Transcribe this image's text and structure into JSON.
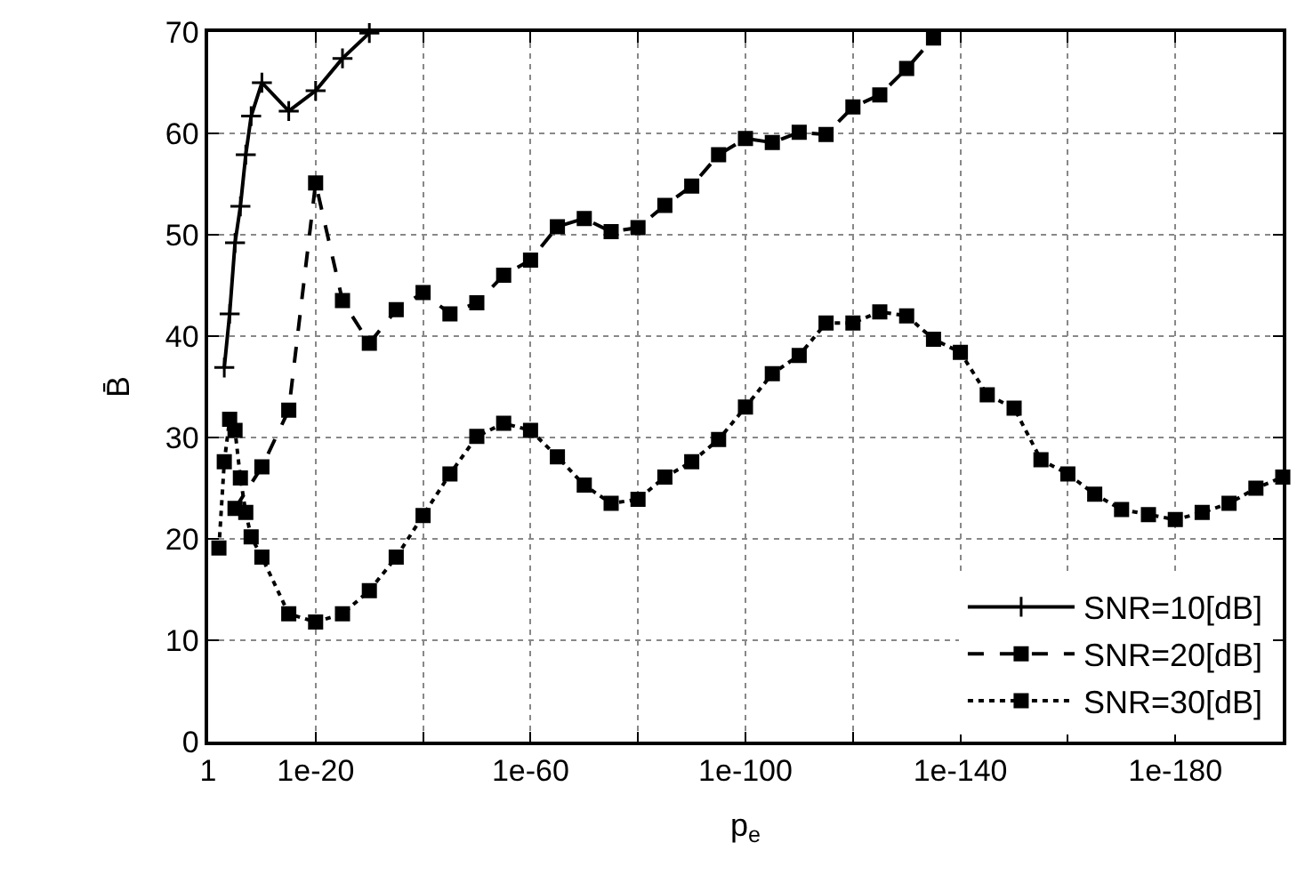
{
  "chart_data": {
    "type": "line",
    "xlabel": "p$_{e}$",
    "ylabel": "B̄",
    "log": "x",
    "grid": true,
    "legend": "bottom right",
    "xlim": [
      1,
      1e-200
    ],
    "xticks": [
      {
        "value": 1,
        "label": "1"
      },
      {
        "value": 1e-20,
        "label": "1e-20"
      },
      {
        "value": 1e-40,
        "label": null
      },
      {
        "value": 1e-60,
        "label": "1e-60"
      },
      {
        "value": 1e-80,
        "label": null
      },
      {
        "value": 1e-100,
        "label": "1e-100"
      },
      {
        "value": 1e-120,
        "label": null
      },
      {
        "value": 1e-140,
        "label": "1e-140"
      },
      {
        "value": 1e-160,
        "label": null
      },
      {
        "value": 1e-180,
        "label": "1e-180"
      },
      {
        "value": 1e-200,
        "label": null
      }
    ],
    "ylim": [
      0,
      70
    ],
    "yticks": [
      0,
      10,
      20,
      30,
      40,
      50,
      60,
      70
    ],
    "series": [
      {
        "name": "SNR=10[dB]",
        "color": "#000000",
        "line_style": "solid",
        "marker": "cross",
        "x": [
          0.001,
          0.0001,
          1e-05,
          1e-06,
          1e-07,
          1e-08,
          1e-10,
          1e-15,
          1e-20,
          1e-25,
          1e-30
        ],
        "values": [
          36.9,
          42.2,
          49.2,
          52.8,
          57.9,
          61.7,
          65.0,
          62.2,
          64.2,
          67.4,
          69.9
        ]
      },
      {
        "name": "SNR=20[dB]",
        "color": "#000000",
        "line_style": "dashed",
        "marker": "square",
        "x": [
          1e-05,
          1e-10,
          1e-15,
          1e-20,
          1e-25,
          1e-30,
          1e-35,
          1e-40,
          1e-45,
          1e-50,
          1e-55,
          1e-60,
          1e-65,
          1e-70,
          1e-75,
          1e-80,
          1e-85,
          1e-90,
          1e-95,
          1e-100,
          1e-105,
          1e-110,
          1e-115,
          1e-120,
          1e-125,
          1e-130,
          1e-135
        ],
        "values": [
          23.0,
          27.1,
          32.7,
          55.1,
          43.5,
          39.3,
          42.6,
          44.3,
          42.2,
          43.3,
          46.0,
          47.5,
          50.8,
          51.6,
          50.3,
          50.7,
          52.9,
          54.8,
          57.9,
          59.5,
          59.1,
          60.1,
          59.9,
          62.6,
          63.8,
          66.4,
          69.4
        ]
      },
      {
        "name": "SNR=30[dB]",
        "color": "#000000",
        "line_style": "dotted",
        "marker": "square",
        "x": [
          0.01,
          0.001,
          0.0001,
          1e-05,
          1e-06,
          1e-07,
          1e-08,
          1e-10,
          1e-15,
          1e-20,
          1e-25,
          1e-30,
          1e-35,
          1e-40,
          1e-45,
          1e-50,
          1e-55,
          1e-60,
          1e-65,
          1e-70,
          1e-75,
          1e-80,
          1e-85,
          1e-90,
          1e-95,
          1e-100,
          1e-105,
          1e-110,
          1e-115,
          1e-120,
          1e-125,
          1e-130,
          1e-135,
          1e-140,
          1e-145,
          1e-150,
          1e-155,
          1e-160,
          1e-165,
          1e-170,
          1e-175,
          1e-180,
          1e-185,
          1e-190,
          1e-195,
          1e-200
        ],
        "values": [
          19.1,
          27.6,
          31.8,
          30.7,
          26.0,
          22.6,
          20.2,
          18.2,
          12.6,
          11.8,
          12.6,
          14.9,
          18.2,
          22.3,
          26.4,
          30.1,
          31.4,
          30.7,
          28.1,
          25.3,
          23.5,
          23.9,
          26.1,
          27.6,
          29.8,
          33.0,
          36.3,
          38.1,
          41.3,
          41.3,
          42.4,
          42.0,
          39.7,
          38.4,
          34.2,
          32.9,
          27.8,
          26.4,
          24.4,
          22.9,
          22.4,
          21.9,
          22.6,
          23.5,
          25.0,
          26.1
        ]
      }
    ]
  }
}
